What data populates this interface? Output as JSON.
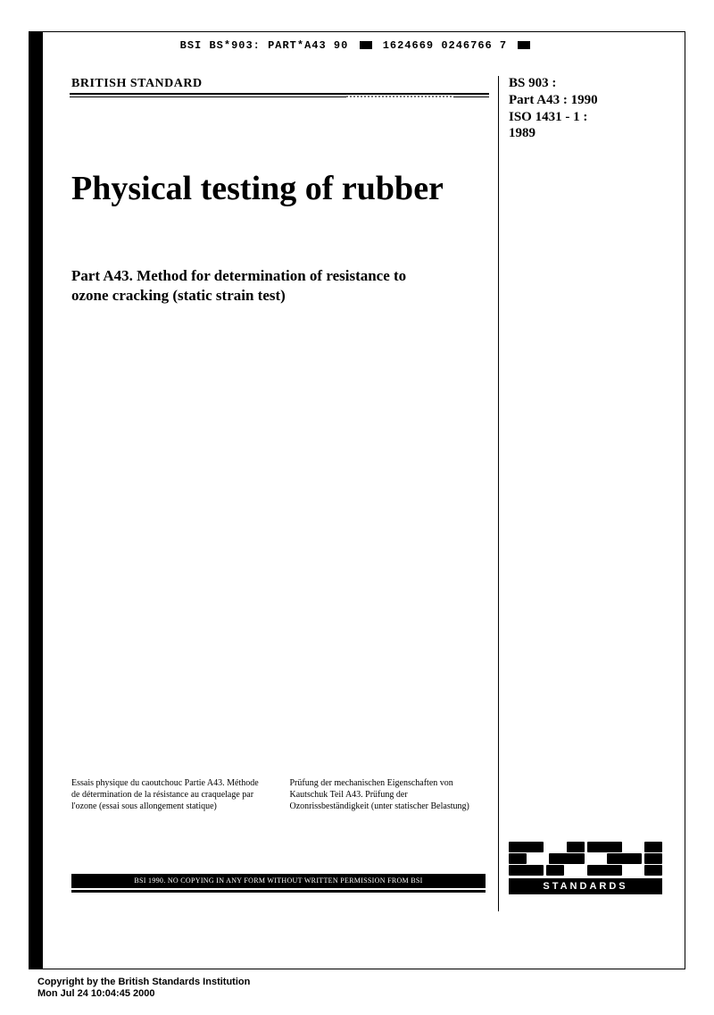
{
  "top_code": {
    "left": "BSI BS*903: PART*A43 90",
    "right": "1624669 0246766 7"
  },
  "header": {
    "label": "BRITISH STANDARD"
  },
  "identifier": {
    "line1": "BS 903 :",
    "line2": "Part A43 : 1990",
    "line3": "ISO 1431 - 1 :",
    "line4": "1989"
  },
  "title": "Physical testing of rubber",
  "subtitle": "Part A43. Method for determination of resistance to ozone cracking (static strain test)",
  "translations": {
    "fr": "Essais physique du caoutchouc\nPartie A43. Méthode de détermination de la résistance au craquelage par l'ozone (essai sous allongement statique)",
    "de": "Prüfung der mechanischen Eigenschaften von Kautschuk\nTeil A43. Prüfung der Ozonrissbeständigkeit (unter statischer Belastung)"
  },
  "copyright_bar": "BSI 1990. NO COPYING IN ANY FORM WITHOUT WRITTEN PERMISSION FROM BSI",
  "logo": {
    "standards_label": "STANDARDS"
  },
  "footer": {
    "line1": "Copyright by the British Standards Institution",
    "line2": "Mon Jul 24 10:04:45 2000"
  },
  "colors": {
    "text": "#000000",
    "background": "#ffffff"
  }
}
